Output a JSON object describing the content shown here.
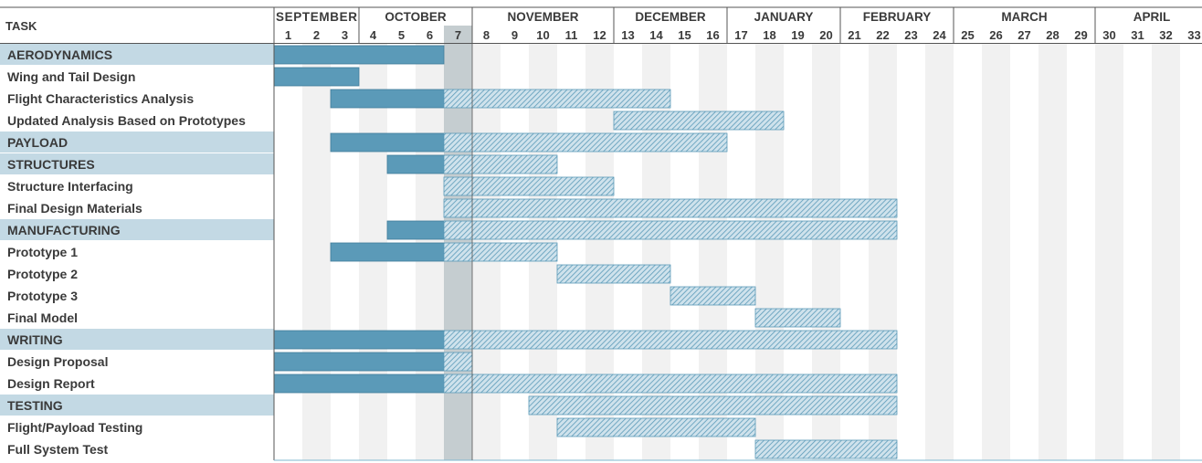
{
  "chart_data": {
    "type": "gantt",
    "header": "TASK",
    "months": [
      {
        "label": "SEPTEMBER",
        "start_week": 1,
        "end_week": 3
      },
      {
        "label": "OCTOBER",
        "start_week": 4,
        "end_week": 7
      },
      {
        "label": "NOVEMBER",
        "start_week": 8,
        "end_week": 12
      },
      {
        "label": "DECEMBER",
        "start_week": 13,
        "end_week": 16
      },
      {
        "label": "JANUARY",
        "start_week": 17,
        "end_week": 20
      },
      {
        "label": "FEBRUARY",
        "start_week": 21,
        "end_week": 24
      },
      {
        "label": "MARCH",
        "start_week": 25,
        "end_week": 29
      },
      {
        "label": "APRIL",
        "start_week": 30,
        "end_week": 33
      }
    ],
    "weeks": [
      "1",
      "2",
      "3",
      "4",
      "5",
      "6",
      "7",
      "8",
      "9",
      "10",
      "11",
      "12",
      "13",
      "14",
      "15",
      "16",
      "17",
      "18",
      "19",
      "20",
      "21",
      "22",
      "23",
      "24",
      "25",
      "26",
      "27",
      "28",
      "29",
      "30",
      "31",
      "32",
      "33"
    ],
    "current_week": 7,
    "colors": {
      "completed": "#5b9ab8",
      "planned_hatch": "#5b9ab8",
      "planned_bg": "#cfe2ec",
      "category_band": "#c3d9e4",
      "current_week": "#c5cdd0",
      "alt_column": "#f1f1f1",
      "text": "#3a3a3a"
    },
    "tasks": [
      {
        "name": "AERODYNAMICS",
        "category": true,
        "done": [
          1,
          6
        ],
        "planned": null
      },
      {
        "name": "Wing and Tail Design",
        "category": false,
        "done": [
          1,
          3
        ],
        "planned": null
      },
      {
        "name": "Flight Characteristics Analysis",
        "category": false,
        "done": [
          3,
          6
        ],
        "planned": [
          7,
          14
        ]
      },
      {
        "name": "Updated Analysis Based on Prototypes",
        "category": false,
        "done": null,
        "planned": [
          13,
          18
        ]
      },
      {
        "name": "PAYLOAD",
        "category": true,
        "done": [
          3,
          6
        ],
        "planned": [
          7,
          16
        ]
      },
      {
        "name": "STRUCTURES",
        "category": true,
        "done": [
          5,
          6
        ],
        "planned": [
          7,
          10
        ]
      },
      {
        "name": "Structure Interfacing",
        "category": false,
        "done": null,
        "planned": [
          7,
          12
        ]
      },
      {
        "name": "Final Design Materials",
        "category": false,
        "done": null,
        "planned": [
          7,
          22
        ]
      },
      {
        "name": "MANUFACTURING",
        "category": true,
        "done": [
          5,
          6
        ],
        "planned": [
          7,
          22
        ]
      },
      {
        "name": "Prototype 1",
        "category": false,
        "done": [
          3,
          6
        ],
        "planned": [
          7,
          10
        ]
      },
      {
        "name": "Prototype 2",
        "category": false,
        "done": null,
        "planned": [
          11,
          14
        ]
      },
      {
        "name": "Prototype 3",
        "category": false,
        "done": null,
        "planned": [
          15,
          17
        ]
      },
      {
        "name": "Final Model",
        "category": false,
        "done": null,
        "planned": [
          18,
          20
        ]
      },
      {
        "name": "WRITING",
        "category": true,
        "done": [
          1,
          6
        ],
        "planned": [
          7,
          22
        ]
      },
      {
        "name": "Design Proposal",
        "category": false,
        "done": [
          1,
          6
        ],
        "planned": [
          7,
          7
        ]
      },
      {
        "name": "Design Report",
        "category": false,
        "done": [
          1,
          6
        ],
        "planned": [
          7,
          22
        ]
      },
      {
        "name": "TESTING",
        "category": true,
        "done": null,
        "planned": [
          10,
          22
        ]
      },
      {
        "name": "Flight/Payload Testing",
        "category": false,
        "done": null,
        "planned": [
          11,
          17
        ]
      },
      {
        "name": "Full System Test",
        "category": false,
        "done": null,
        "planned": [
          18,
          22
        ]
      }
    ]
  }
}
